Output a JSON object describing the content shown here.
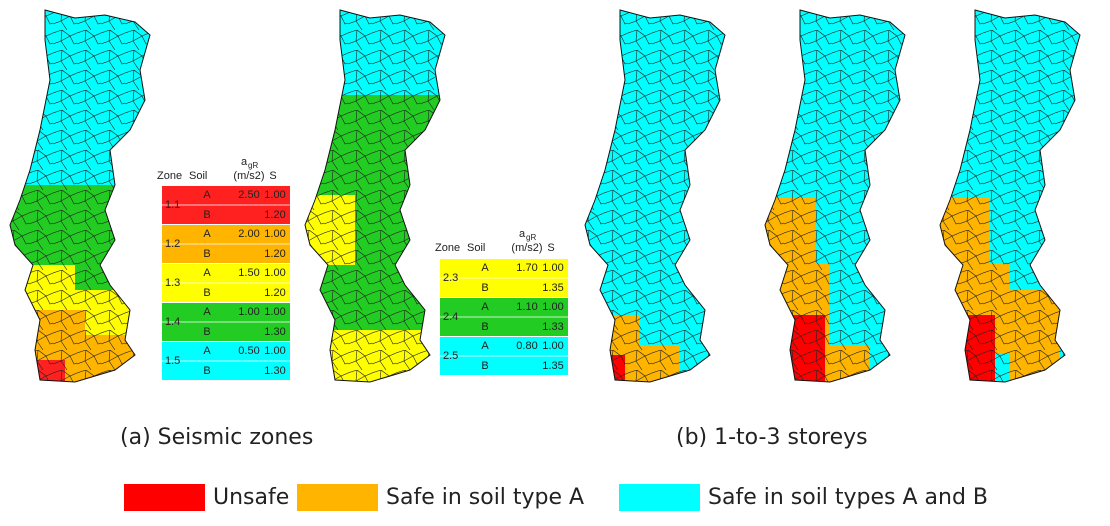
{
  "tables": [
    {
      "header": {
        "zone": "Zone",
        "soil": "Soil",
        "agr": "a",
        "agr_sub": "gR",
        "agr_unit": "(m/s2)",
        "s": "S"
      },
      "rows": [
        {
          "zone": "1.1",
          "color": "#ff2020",
          "a": {
            "soil": "A",
            "agr": "2.50",
            "s": "1.00"
          },
          "b": {
            "soil": "B",
            "s": "1.20"
          }
        },
        {
          "zone": "1.2",
          "color": "#ffb400",
          "a": {
            "soil": "A",
            "agr": "2.00",
            "s": "1.00"
          },
          "b": {
            "soil": "B",
            "s": "1.20"
          }
        },
        {
          "zone": "1.3",
          "color": "#ffff00",
          "a": {
            "soil": "A",
            "agr": "1.50",
            "s": "1.00"
          },
          "b": {
            "soil": "B",
            "s": "1.20"
          }
        },
        {
          "zone": "1.4",
          "color": "#22cc22",
          "a": {
            "soil": "A",
            "agr": "1.00",
            "s": "1.00"
          },
          "b": {
            "soil": "B",
            "s": "1.30"
          }
        },
        {
          "zone": "1.5",
          "color": "#00ffff",
          "a": {
            "soil": "A",
            "agr": "0.50",
            "s": "1.00"
          },
          "b": {
            "soil": "B",
            "s": "1.30"
          }
        }
      ]
    },
    {
      "header": {
        "zone": "Zone",
        "soil": "Soil",
        "agr": "a",
        "agr_sub": "gR",
        "agr_unit": "(m/s2)",
        "s": "S"
      },
      "rows": [
        {
          "zone": "2.3",
          "color": "#ffff00",
          "a": {
            "soil": "A",
            "agr": "1.70",
            "s": "1.00"
          },
          "b": {
            "soil": "B",
            "s": "1.35"
          }
        },
        {
          "zone": "2.4",
          "color": "#22cc22",
          "a": {
            "soil": "A",
            "agr": "1.10",
            "s": "1.00"
          },
          "b": {
            "soil": "B",
            "s": "1.33"
          }
        },
        {
          "zone": "2.5",
          "color": "#00ffff",
          "a": {
            "soil": "A",
            "agr": "0.80",
            "s": "1.00"
          },
          "b": {
            "soil": "B",
            "s": "1.35"
          }
        }
      ]
    }
  ],
  "captions": [
    "(a) Seismic zones",
    "(b) 1-to-3 storeys"
  ],
  "legend": [
    {
      "label": "Unsafe",
      "color": "#ff0000"
    },
    {
      "label": "Safe in soil type A",
      "color": "#ffb400"
    },
    {
      "label": "Safe in soil types A and B",
      "color": "#00ffff"
    }
  ]
}
